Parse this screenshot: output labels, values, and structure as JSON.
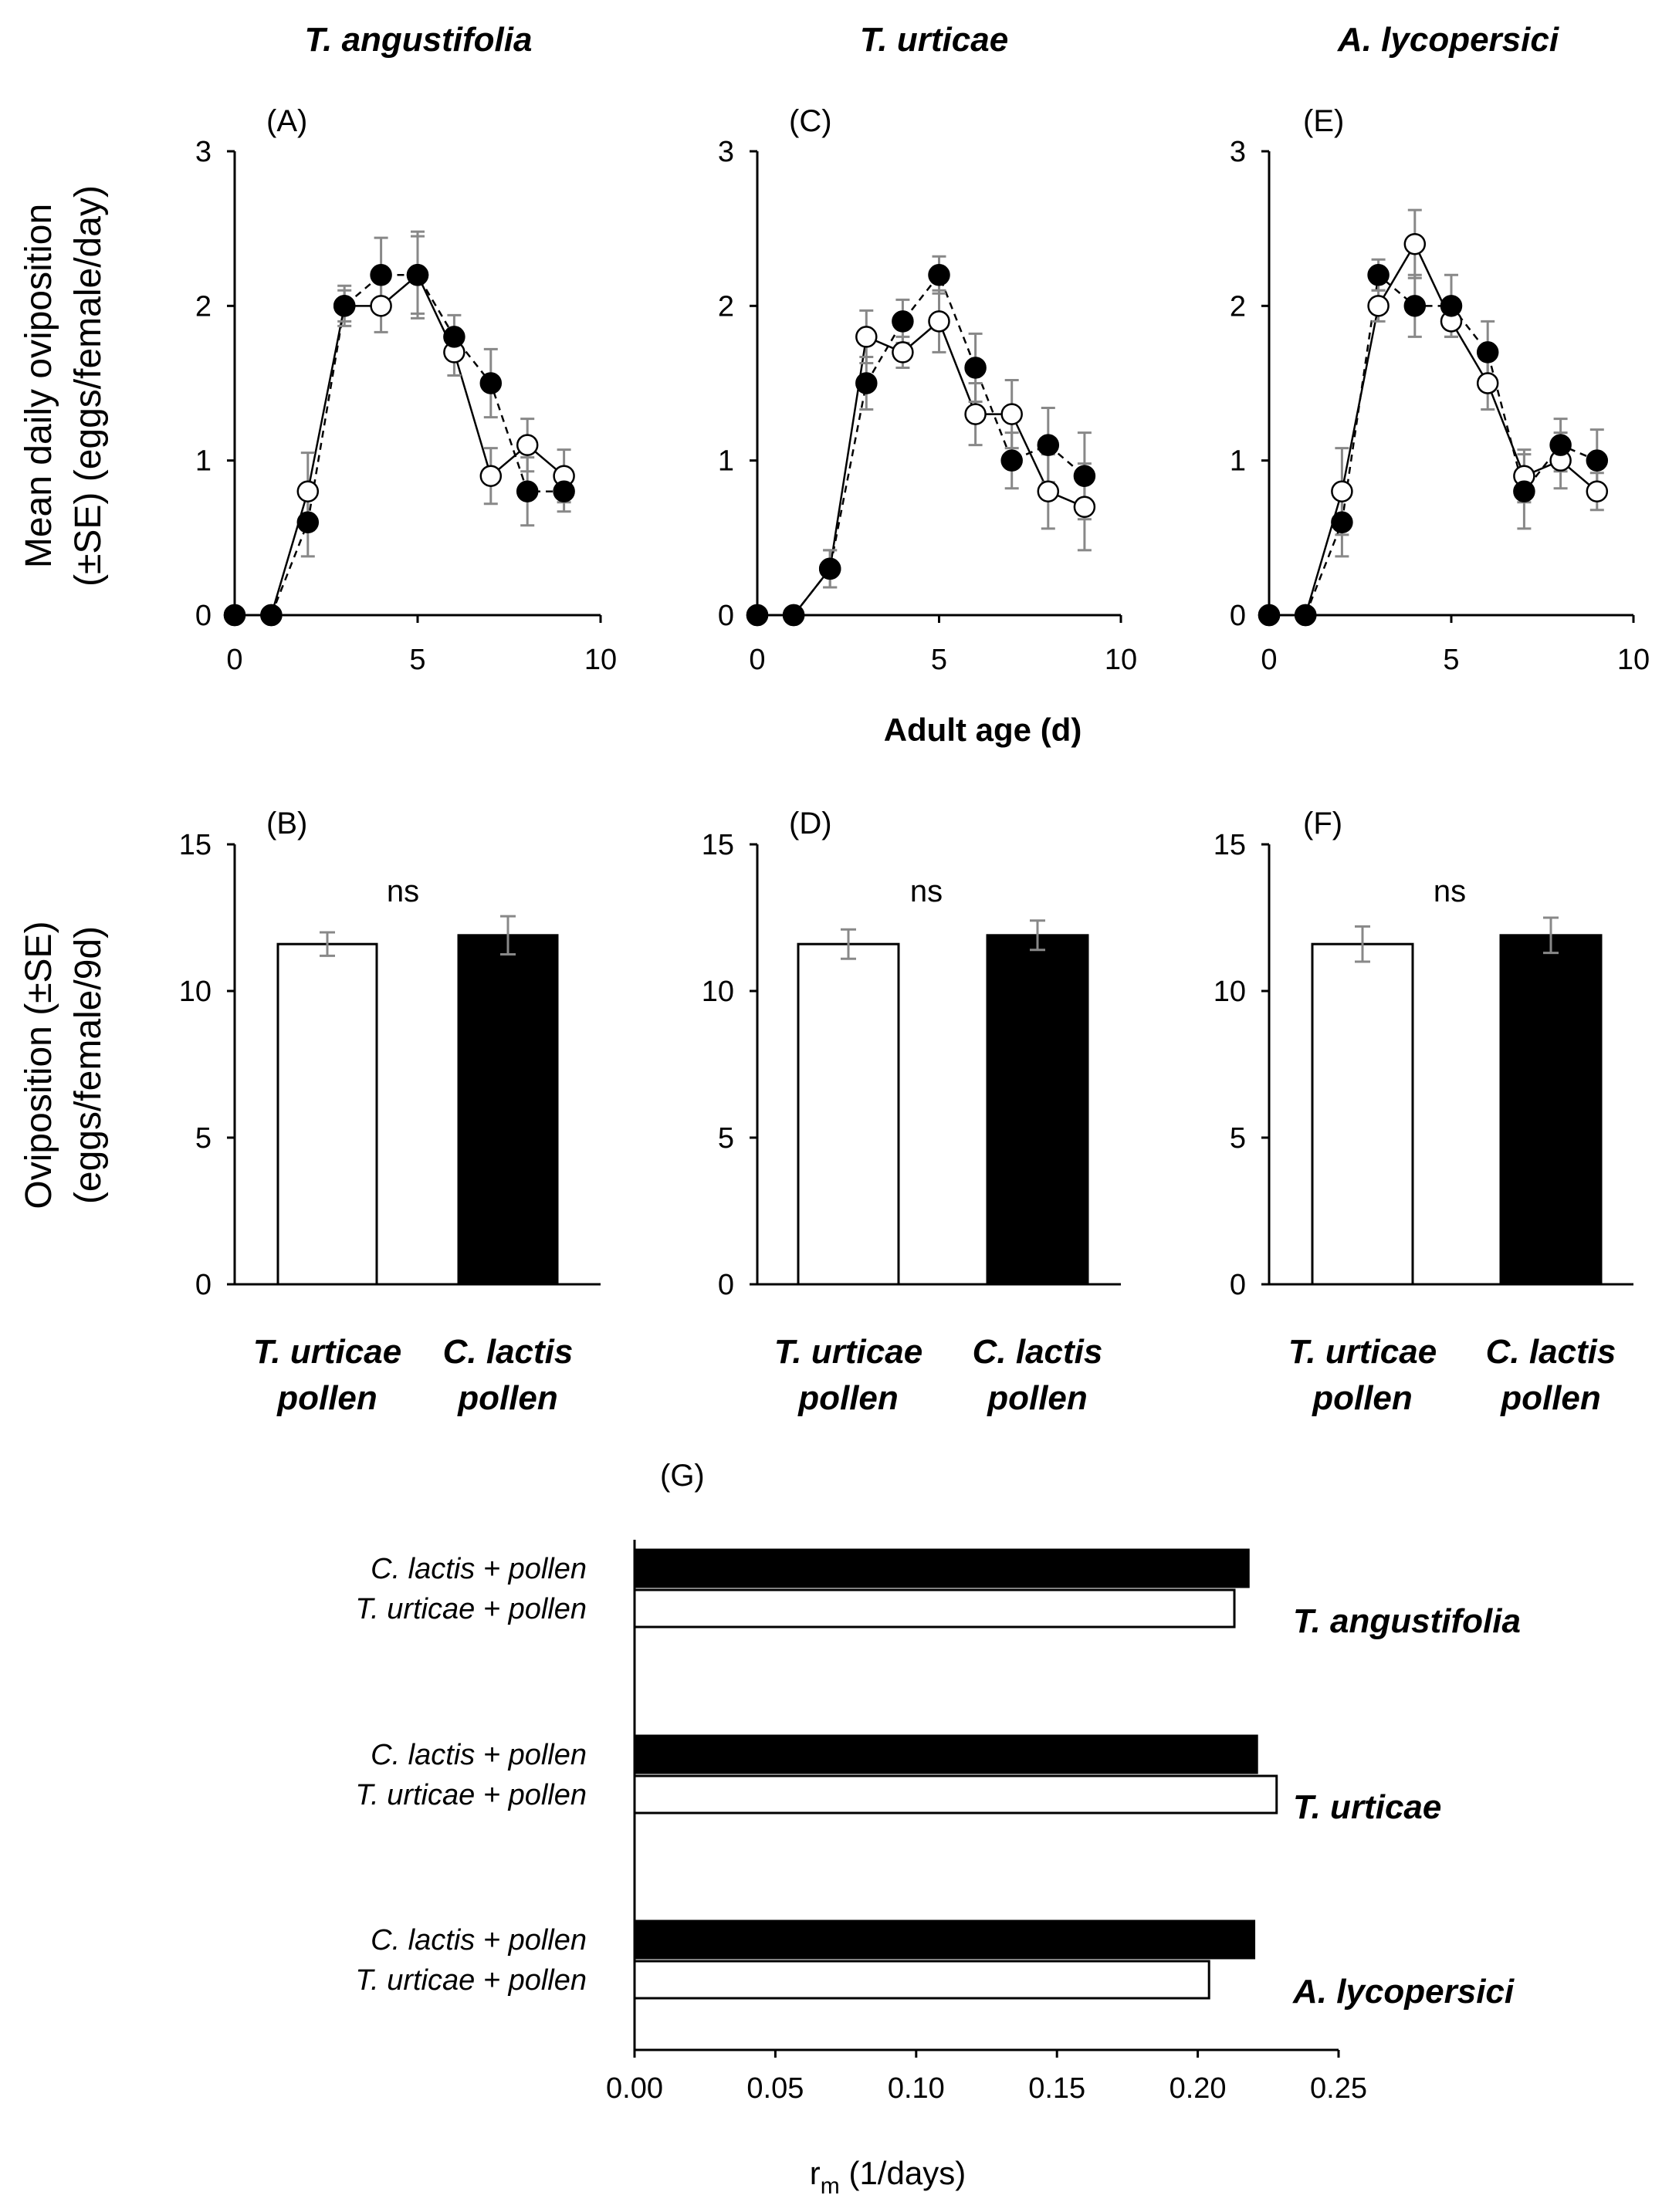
{
  "chart_data": [
    {
      "panel": "(A)",
      "type": "line",
      "title": "T. angustifolia",
      "ylabel": "Mean daily oviposition\n(±SE) (eggs/female/day)",
      "xlabel": "",
      "xlim": [
        0,
        10
      ],
      "ylim": [
        0,
        3
      ],
      "xticks": [
        0,
        5,
        10
      ],
      "yticks": [
        0,
        1,
        2,
        3
      ],
      "x": [
        0,
        1,
        2,
        3,
        4,
        5,
        6,
        7,
        8,
        9
      ],
      "series": [
        {
          "name": "C. lactis pollen",
          "marker": "filled",
          "style": "dashed",
          "values": [
            0,
            0,
            0.6,
            2.0,
            2.2,
            2.2,
            1.8,
            1.5,
            0.8,
            0.8
          ],
          "se": [
            0,
            0,
            0.22,
            0.13,
            0.24,
            0.28,
            0.14,
            0.22,
            0.22,
            0.13
          ]
        },
        {
          "name": "T. urticae pollen",
          "marker": "open",
          "style": "solid",
          "values": [
            0,
            0,
            0.8,
            2.0,
            2.0,
            2.2,
            1.7,
            0.9,
            1.1,
            0.9
          ],
          "se": [
            0,
            0,
            0.25,
            0.1,
            0.17,
            0.25,
            0.15,
            0.18,
            0.17,
            0.17
          ]
        }
      ]
    },
    {
      "panel": "(C)",
      "type": "line",
      "title": "T. urticae",
      "xlabel": "Adult age (d)",
      "xlim": [
        0,
        10
      ],
      "ylim": [
        0,
        3
      ],
      "xticks": [
        0,
        5,
        10
      ],
      "yticks": [
        0,
        1,
        2,
        3
      ],
      "x": [
        0,
        1,
        2,
        3,
        4,
        5,
        6,
        7,
        8,
        9
      ],
      "series": [
        {
          "name": "C. lactis pollen",
          "marker": "filled",
          "style": "dashed",
          "values": [
            0,
            0,
            0.3,
            1.5,
            1.9,
            2.2,
            1.6,
            1.0,
            1.1,
            0.9
          ],
          "se": [
            0,
            0,
            0.12,
            0.17,
            0.14,
            0.12,
            0.22,
            0.18,
            0.24,
            0.28
          ]
        },
        {
          "name": "T. urticae pollen",
          "marker": "open",
          "style": "solid",
          "values": [
            0,
            0,
            0.3,
            1.8,
            1.7,
            1.9,
            1.3,
            1.3,
            0.8,
            0.7
          ],
          "se": [
            0,
            0,
            0.12,
            0.17,
            0.1,
            0.2,
            0.2,
            0.22,
            0.24,
            0.28
          ]
        }
      ]
    },
    {
      "panel": "(E)",
      "type": "line",
      "title": "A. lycopersici",
      "xlabel": "",
      "xlim": [
        0,
        10
      ],
      "ylim": [
        0,
        3
      ],
      "xticks": [
        0,
        5,
        10
      ],
      "yticks": [
        0,
        1,
        2,
        3
      ],
      "x": [
        0,
        1,
        2,
        3,
        4,
        5,
        6,
        7,
        8,
        9
      ],
      "series": [
        {
          "name": "C. lactis pollen",
          "marker": "filled",
          "style": "dashed",
          "values": [
            0,
            0,
            0.6,
            2.2,
            2.0,
            2.0,
            1.7,
            0.8,
            1.1,
            1.0
          ],
          "se": [
            0,
            0,
            0.22,
            0.1,
            0.2,
            0.2,
            0.2,
            0.24,
            0.17,
            0.2
          ]
        },
        {
          "name": "T. urticae pollen",
          "marker": "open",
          "style": "solid",
          "values": [
            0,
            0,
            0.8,
            2.0,
            2.4,
            1.9,
            1.5,
            0.9,
            1.0,
            0.8
          ],
          "se": [
            0,
            0,
            0.28,
            0.1,
            0.22,
            0.1,
            0.17,
            0.17,
            0.18,
            0.12
          ]
        }
      ]
    },
    {
      "panel": "(B)",
      "type": "bar",
      "ylabel": "Oviposition (±SE)\n(eggs/female/9d)",
      "ylim": [
        0,
        15
      ],
      "yticks": [
        0,
        5,
        10,
        15
      ],
      "annotation": "ns",
      "categories": [
        {
          "line1": "T. urticae",
          "line2": "pollen"
        },
        {
          "line1": "C. lactis",
          "line2": "pollen"
        }
      ],
      "values": [
        11.6,
        11.9
      ],
      "se": [
        0.4,
        0.65
      ],
      "fills": [
        "#ffffff",
        "#000000"
      ]
    },
    {
      "panel": "(D)",
      "type": "bar",
      "ylim": [
        0,
        15
      ],
      "yticks": [
        0,
        5,
        10,
        15
      ],
      "annotation": "ns",
      "categories": [
        {
          "line1": "T. urticae",
          "line2": "pollen"
        },
        {
          "line1": "C. lactis",
          "line2": "pollen"
        }
      ],
      "values": [
        11.6,
        11.9
      ],
      "se": [
        0.5,
        0.5
      ],
      "fills": [
        "#ffffff",
        "#000000"
      ]
    },
    {
      "panel": "(F)",
      "type": "bar",
      "ylim": [
        0,
        15
      ],
      "yticks": [
        0,
        5,
        10,
        15
      ],
      "annotation": "ns",
      "categories": [
        {
          "line1": "T. urticae",
          "line2": "pollen"
        },
        {
          "line1": "C. lactis",
          "line2": "pollen"
        }
      ],
      "values": [
        11.6,
        11.9
      ],
      "se": [
        0.6,
        0.6
      ],
      "fills": [
        "#ffffff",
        "#000000"
      ]
    },
    {
      "panel": "(G)",
      "type": "bar",
      "orientation": "horizontal",
      "xlabel": "r",
      "xlabel_sub": "m",
      "xlabel_rest": " (1/days)",
      "xlim": [
        0,
        0.25
      ],
      "xticks": [
        "0.00",
        "0.05",
        "0.10",
        "0.15",
        "0.20",
        "0.25"
      ],
      "groups": [
        {
          "species": "T. angustifolia",
          "bars": [
            {
              "label": "C. lactis + pollen",
              "value": 0.218,
              "fill": "#000000"
            },
            {
              "label": "T. urticae +  pollen",
              "value": 0.213,
              "fill": "#ffffff"
            }
          ]
        },
        {
          "species": "T. urticae",
          "bars": [
            {
              "label": "C. lactis + pollen",
              "value": 0.221,
              "fill": "#000000"
            },
            {
              "label": "T. urticae +  pollen",
              "value": 0.228,
              "fill": "#ffffff"
            }
          ]
        },
        {
          "species": "A. lycopersici",
          "bars": [
            {
              "label": "C. lactis + pollen",
              "value": 0.22,
              "fill": "#000000"
            },
            {
              "label": "T. urticae +  pollen",
              "value": 0.204,
              "fill": "#ffffff"
            }
          ]
        }
      ]
    }
  ]
}
